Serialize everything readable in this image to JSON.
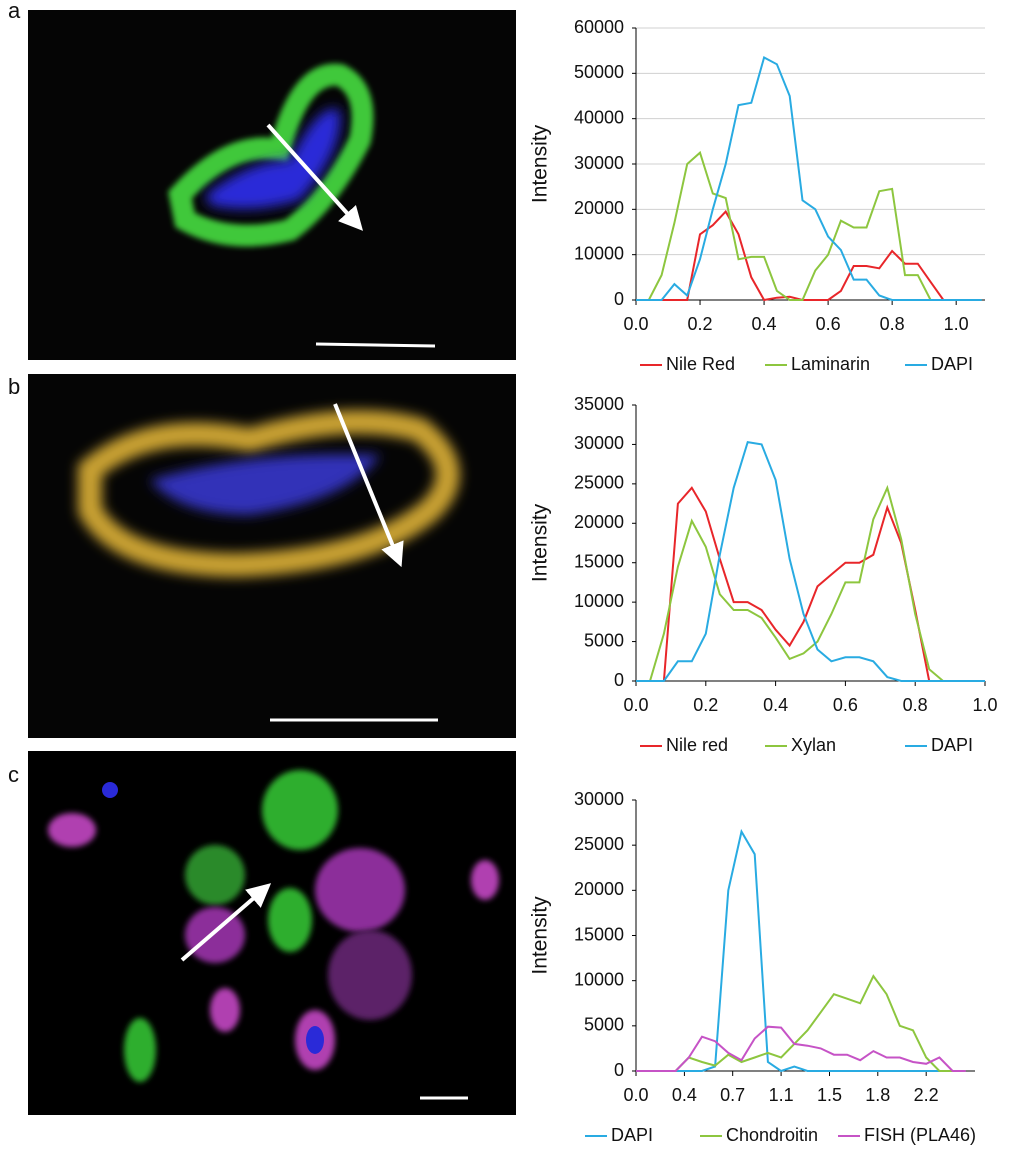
{
  "chart_data": [
    {
      "type": "line",
      "panel": "a",
      "y_label": "Intensity",
      "grid": true,
      "x": [
        0,
        0.04,
        0.08,
        0.12,
        0.16,
        0.2,
        0.24,
        0.28,
        0.32,
        0.36,
        0.4,
        0.44,
        0.48,
        0.52,
        0.56,
        0.6,
        0.64,
        0.68,
        0.72,
        0.76,
        0.8,
        0.84,
        0.88,
        0.92,
        0.96,
        1.0,
        1.04,
        1.08
      ],
      "xlim": [
        0,
        1.09
      ],
      "xticks": [
        {
          "value": 0,
          "label": "0.0"
        },
        0.2,
        0.4,
        0.6,
        0.8,
        {
          "value": 1,
          "label": "1.0"
        }
      ],
      "ylim": [
        0,
        60000
      ],
      "yticks": [
        0,
        10000,
        20000,
        30000,
        40000,
        50000,
        60000
      ],
      "series": [
        {
          "name": "Nile Red",
          "color": "#e8262a",
          "values": [
            0,
            0,
            0,
            0,
            0,
            14500,
            16500,
            19500,
            14500,
            5000,
            0,
            500,
            700,
            0,
            0,
            0,
            2000,
            7500,
            7500,
            7000,
            10800,
            8000,
            8000,
            4000,
            0,
            0,
            0,
            0
          ]
        },
        {
          "name": "Laminarin",
          "color": "#8dc63f",
          "values": [
            0,
            0,
            5500,
            17000,
            30000,
            32500,
            23500,
            22500,
            9000,
            9500,
            9500,
            2000,
            0,
            0,
            6500,
            10000,
            17500,
            16000,
            16000,
            24000,
            24500,
            5500,
            5500,
            0,
            0,
            0,
            0,
            0
          ]
        },
        {
          "name": "DAPI",
          "color": "#29abe2",
          "values": [
            0,
            0,
            0,
            3500,
            1000,
            9000,
            20000,
            30000,
            43000,
            43500,
            53500,
            52000,
            45000,
            22000,
            20000,
            14000,
            11000,
            4500,
            4500,
            1000,
            0,
            0,
            0,
            0,
            0,
            0,
            0,
            0
          ]
        }
      ]
    },
    {
      "type": "line",
      "panel": "b",
      "y_label": "Intensity",
      "grid": false,
      "x": [
        0,
        0.04,
        0.08,
        0.12,
        0.16,
        0.2,
        0.24,
        0.28,
        0.32,
        0.36,
        0.4,
        0.44,
        0.48,
        0.52,
        0.56,
        0.6,
        0.64,
        0.68,
        0.72,
        0.76,
        0.8,
        0.84,
        0.88,
        0.92,
        0.96,
        1.0
      ],
      "xlim": [
        0,
        1
      ],
      "xticks": [
        {
          "value": 0,
          "label": "0.0"
        },
        0.2,
        0.4,
        0.6,
        0.8,
        {
          "value": 1,
          "label": "1.0"
        }
      ],
      "ylim": [
        0,
        35000
      ],
      "yticks": [
        0,
        5000,
        10000,
        15000,
        20000,
        25000,
        30000,
        35000
      ],
      "series": [
        {
          "name": "Nile red",
          "color": "#e8262a",
          "values": [
            0,
            0,
            0,
            22500,
            24500,
            21500,
            15500,
            10000,
            10000,
            9000,
            6500,
            4500,
            7500,
            12000,
            13500,
            15000,
            15000,
            16000,
            22000,
            17500,
            9000,
            0,
            0,
            0,
            0,
            0
          ]
        },
        {
          "name": "Xylan",
          "color": "#8dc63f",
          "values": [
            0,
            0,
            6000,
            14500,
            20300,
            17000,
            11000,
            9000,
            9000,
            8000,
            5500,
            2800,
            3500,
            5000,
            8500,
            12500,
            12500,
            20500,
            24500,
            18000,
            8500,
            1500,
            0,
            0,
            0,
            0
          ]
        },
        {
          "name": "DAPI",
          "color": "#29abe2",
          "values": [
            0,
            0,
            0,
            2500,
            2500,
            6000,
            16000,
            24500,
            30300,
            30000,
            25500,
            15500,
            8500,
            4000,
            2500,
            3000,
            3000,
            2500,
            500,
            0,
            0,
            0,
            0,
            0,
            0,
            0
          ]
        }
      ]
    },
    {
      "type": "line",
      "panel": "c",
      "y_label": "Intensity",
      "grid": false,
      "x": [
        0,
        0.1,
        0.2,
        0.3,
        0.4,
        0.5,
        0.6,
        0.7,
        0.8,
        0.9,
        1.0,
        1.1,
        1.2,
        1.3,
        1.4,
        1.5,
        1.6,
        1.7,
        1.8,
        1.9,
        2.0,
        2.1,
        2.2,
        2.3,
        2.4,
        2.5
      ],
      "xlim": [
        0,
        2.57
      ],
      "xticks": [
        {
          "value": 0,
          "label": "0.0"
        },
        {
          "value": 0.367,
          "label": "0.4"
        },
        {
          "value": 0.733,
          "label": "0.7"
        },
        1.1,
        {
          "value": 1.467,
          "label": "1.5"
        },
        {
          "value": 1.833,
          "label": "1.8"
        },
        2.2
      ],
      "ylim": [
        0,
        30000
      ],
      "yticks": [
        0,
        5000,
        10000,
        15000,
        20000,
        25000,
        30000
      ],
      "series": [
        {
          "name": "DAPI",
          "color": "#29abe2",
          "values": [
            0,
            0,
            0,
            0,
            0,
            0,
            500,
            20000,
            26500,
            24000,
            1000,
            0,
            500,
            0,
            0,
            0,
            0,
            0,
            0,
            0,
            0,
            0,
            0,
            0,
            0,
            0
          ]
        },
        {
          "name": "Chondroitin",
          "color": "#8dc63f",
          "values": [
            0,
            0,
            0,
            0,
            1500,
            1000,
            600,
            1800,
            1000,
            1500,
            2000,
            1500,
            3000,
            4500,
            6500,
            8500,
            8000,
            7500,
            10500,
            8500,
            5000,
            4500,
            1500,
            0,
            0,
            0
          ]
        },
        {
          "name": "FISH (PLA46)",
          "color": "#c653c6",
          "values": [
            0,
            0,
            0,
            0,
            1500,
            3800,
            3300,
            2000,
            1200,
            3600,
            4900,
            4800,
            3000,
            2800,
            2500,
            1800,
            1800,
            1200,
            2200,
            1500,
            1500,
            1000,
            800,
            1500,
            0,
            0
          ]
        }
      ]
    }
  ]
}
